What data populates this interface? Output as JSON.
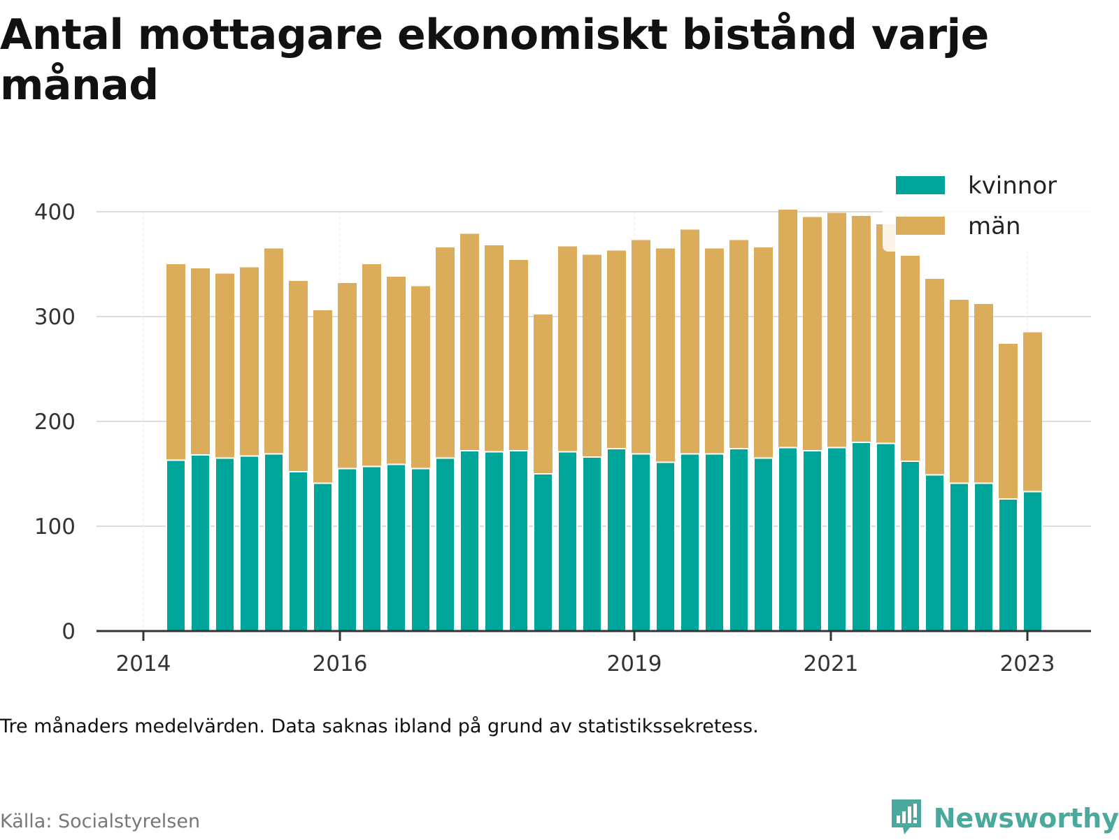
{
  "title": "Antal mottagare ekonomiskt bistånd varje månad",
  "note": "Tre månaders medelvärden. Data saknas ibland på grund av statistikssekretess.",
  "source": "Källa: Socialstyrelsen",
  "brand": {
    "name": "Newsworthy",
    "icon": "newsworthy-logo-icon"
  },
  "colors": {
    "kvinnor": "#00a59a",
    "man": "#dbad5a",
    "grid": "#dddddd",
    "axis": "#333333"
  },
  "chart_data": {
    "type": "bar",
    "stacked": true,
    "title": "Antal mottagare ekonomiskt bistånd varje månad",
    "xlabel": "",
    "ylabel": "",
    "ylim": [
      0,
      400
    ],
    "yticks": [
      0,
      100,
      200,
      300,
      400
    ],
    "xtick_labels": [
      "2014",
      "2016",
      "2019",
      "2021",
      "2023"
    ],
    "grid": true,
    "legend_position": "top-right",
    "series": [
      {
        "name": "kvinnor",
        "values": [
          163,
          168,
          165,
          167,
          169,
          152,
          141,
          155,
          157,
          159,
          155,
          165,
          172,
          171,
          172,
          150,
          171,
          166,
          174,
          169,
          161,
          169,
          169,
          174,
          165,
          175,
          172,
          175,
          180,
          179,
          162,
          149,
          141,
          141,
          126,
          133
        ]
      },
      {
        "name": "män",
        "values": [
          187,
          178,
          176,
          180,
          196,
          182,
          165,
          177,
          193,
          179,
          174,
          201,
          207,
          197,
          182,
          152,
          196,
          193,
          189,
          204,
          204,
          214,
          196,
          199,
          201,
          227,
          223,
          224,
          216,
          209,
          196,
          187,
          175,
          171,
          148,
          152
        ]
      }
    ]
  }
}
